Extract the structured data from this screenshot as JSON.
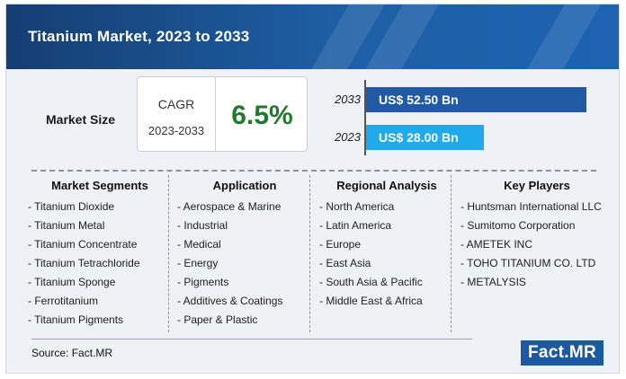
{
  "header": {
    "title": "Titanium Market, 2023 to 2033"
  },
  "market_size": {
    "label": "Market Size",
    "cagr_label": "CAGR",
    "cagr_period": "2023-2033",
    "cagr_value": "6.5%"
  },
  "colors": {
    "bar_2033": "#205aa5",
    "bar_2023": "#1eaaeb",
    "cagr_value": "#1f7a2c",
    "header": "#1e5fa4"
  },
  "chart_data": {
    "type": "bar",
    "orientation": "horizontal",
    "categories": [
      "2033",
      "2023"
    ],
    "values": [
      52.5,
      28.0
    ],
    "value_labels": [
      "US$ 52.50 Bn",
      "US$ 28.00 Bn"
    ],
    "title": "",
    "xlabel": "",
    "ylabel": "",
    "xlim": [
      0,
      52.5
    ],
    "grid": false
  },
  "columns": [
    {
      "title": "Market Segments",
      "items": [
        "Titanium Dioxide",
        "Titanium Metal",
        "Titanium Concentrate",
        "Titanium Tetrachloride",
        "Titanium Sponge",
        "Ferrotitanium",
        "Titanium Pigments"
      ]
    },
    {
      "title": "Application",
      "items": [
        "Aerospace & Marine",
        "Industrial",
        "Medical",
        "Energy",
        "Pigments",
        "Additives & Coatings",
        "Paper & Plastic"
      ]
    },
    {
      "title": "Regional Analysis",
      "items": [
        "North America",
        "Latin America",
        "Europe",
        "East Asia",
        "South Asia & Pacific",
        "Middle East & Africa"
      ]
    },
    {
      "title": "Key Players",
      "items": [
        "Huntsman International LLC",
        "Sumitomo Corporation",
        "AMETEK INC",
        "TOHO TITANIUM CO. LTD",
        "METALYSIS"
      ]
    }
  ],
  "footer": {
    "source": "Source: Fact.MR",
    "logo": "Fact.MR"
  }
}
